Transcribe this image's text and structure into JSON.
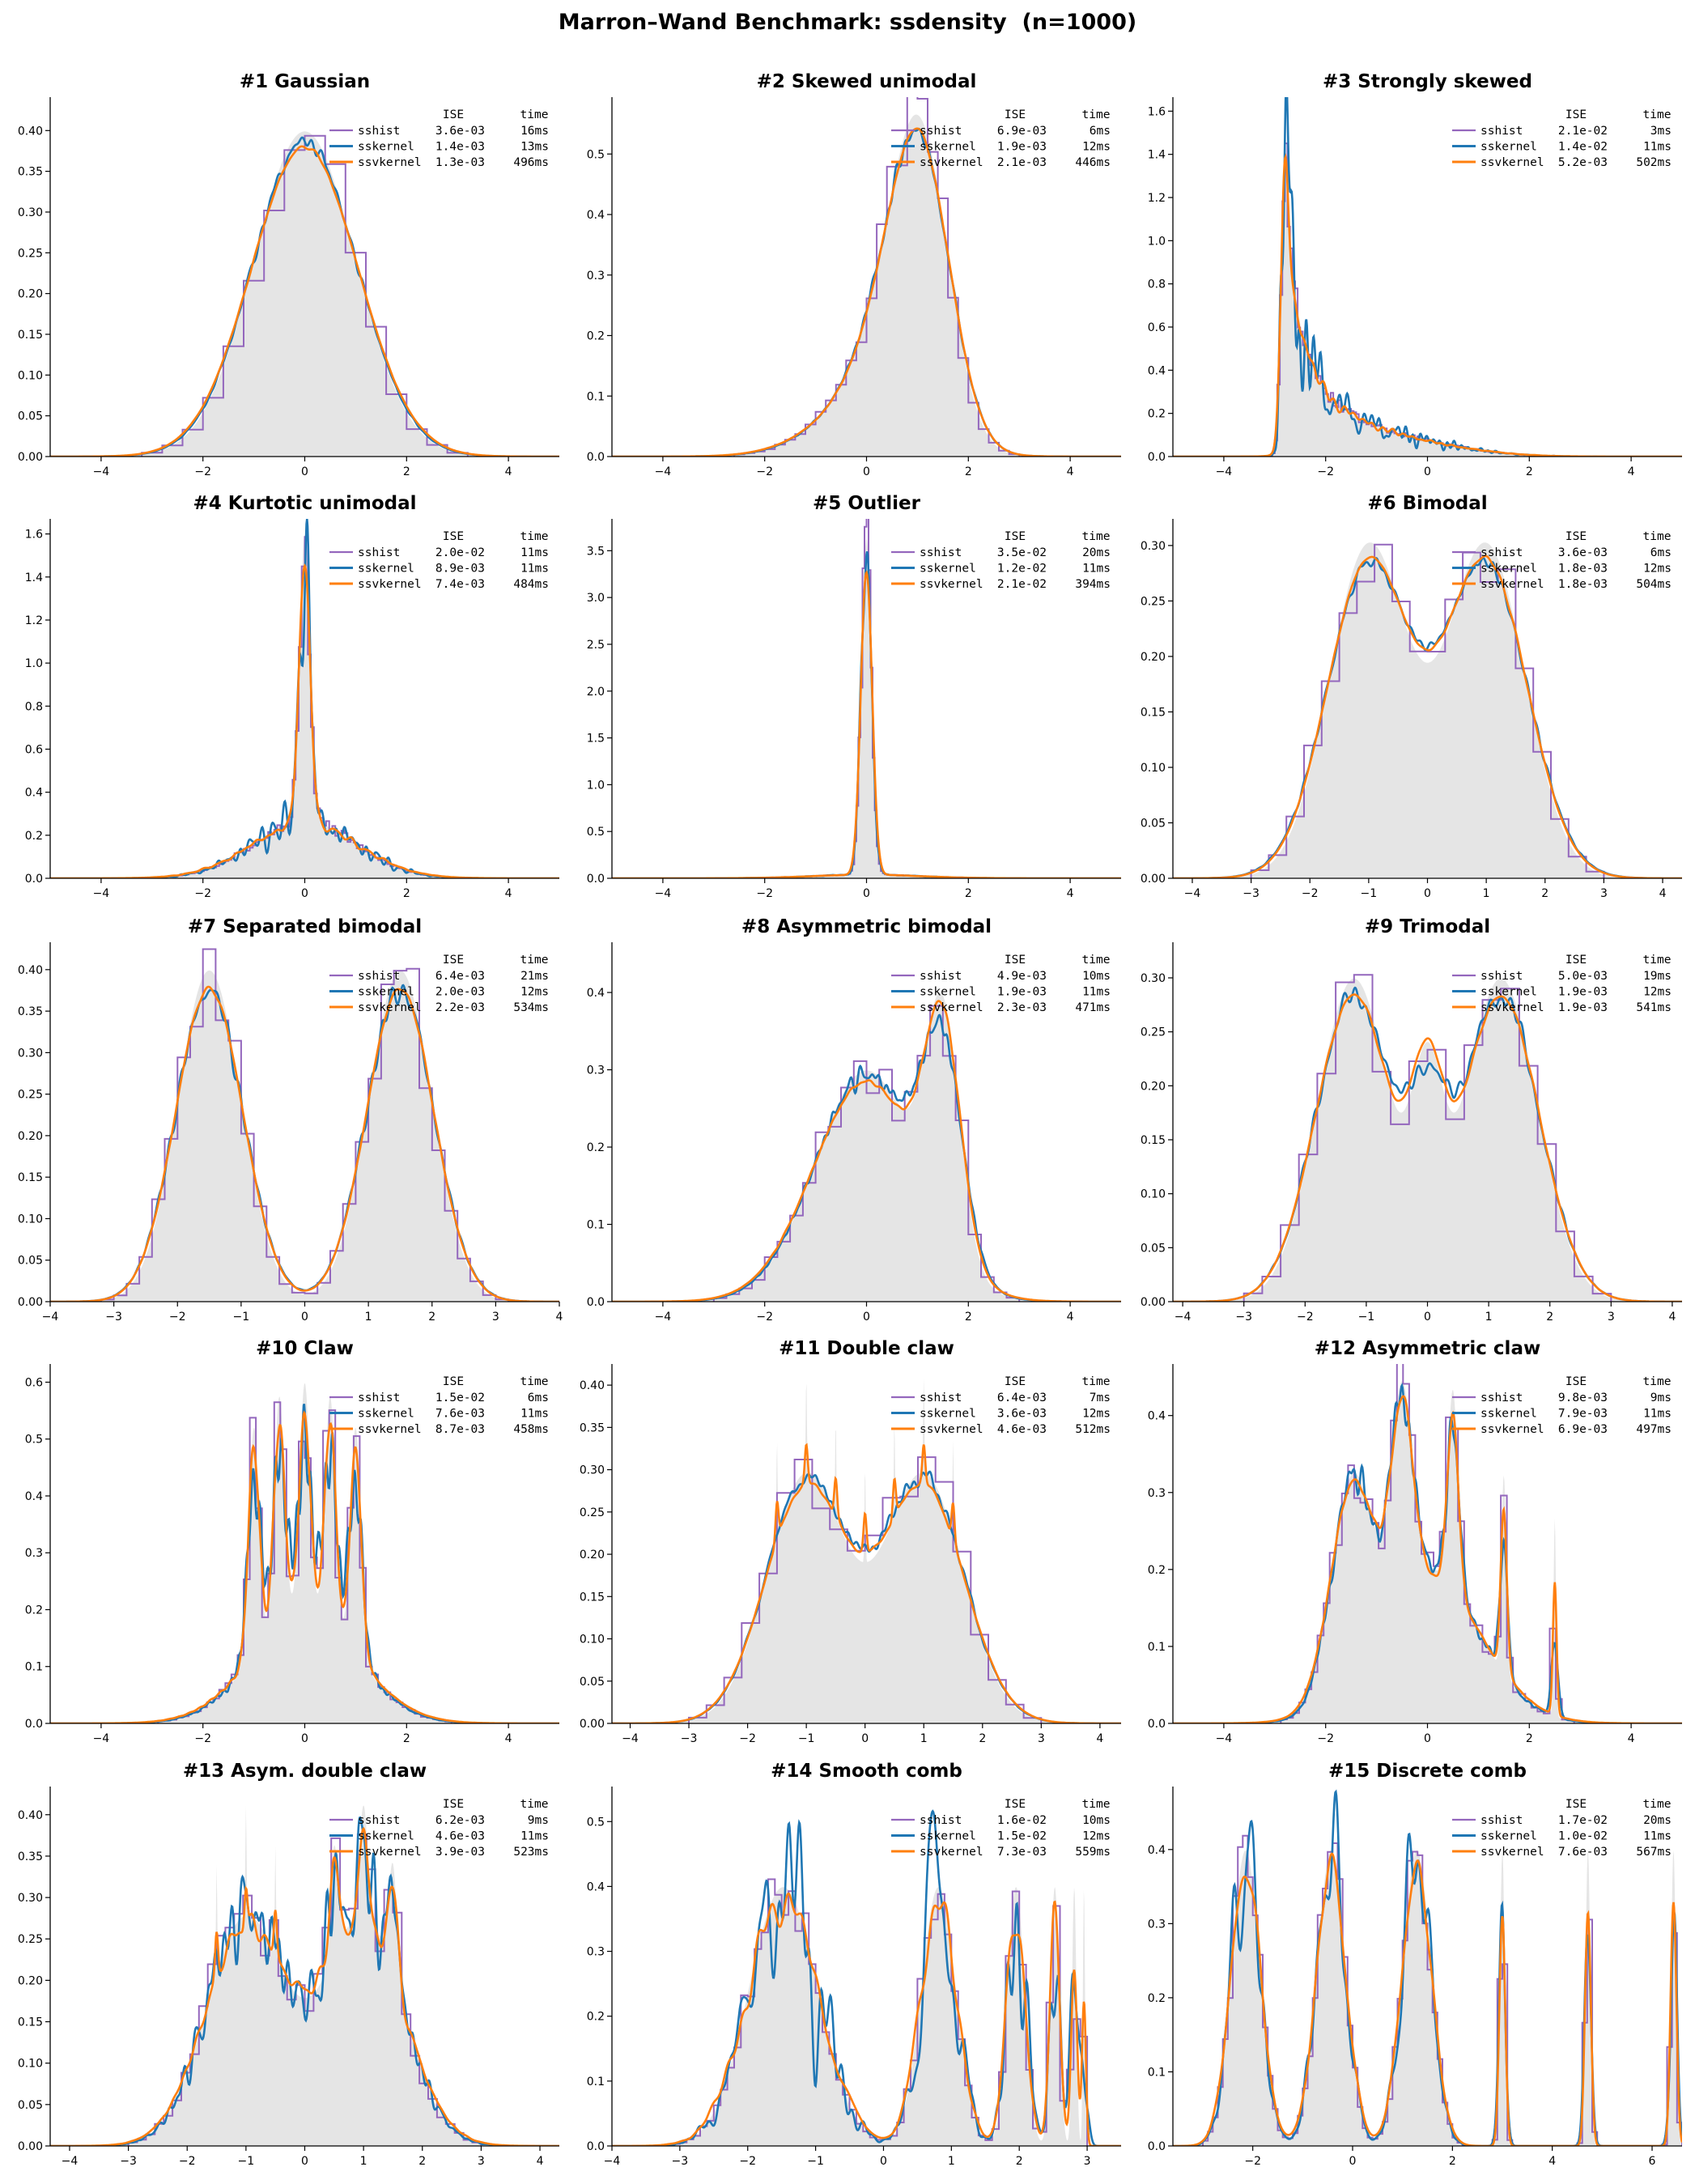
{
  "title": "Marron–Wand Benchmark: ssdensity  (n=1000)",
  "legend_header": {
    "ise": "ISE",
    "time": "time"
  },
  "colors": {
    "truth": "#e5e5e5",
    "sshist": "#9467bd",
    "sskernel": "#1f77b4",
    "ssvkernel": "#ff7f0e",
    "axis": "#000000"
  },
  "chart_data": [
    {
      "type": "line",
      "title": "#1 Gaussian",
      "xlim": [
        -5,
        5
      ],
      "ylim": [
        0,
        0.441
      ],
      "xticks": [
        "−4",
        "−2",
        "0",
        "2",
        "4"
      ],
      "yticks": [
        "0.00",
        "0.05",
        "0.10",
        "0.15",
        "0.20",
        "0.25",
        "0.30",
        "0.35",
        "0.40"
      ],
      "true_density_components": [
        [
          1,
          0,
          1
        ]
      ],
      "results": [
        {
          "method": "sshist",
          "ise": "3.6e-03",
          "time": "16ms"
        },
        {
          "method": "sskernel",
          "ise": "1.4e-03",
          "time": "13ms"
        },
        {
          "method": "ssvkernel",
          "ise": "1.3e-03",
          "time": "496ms"
        }
      ]
    },
    {
      "type": "line",
      "title": "#2 Skewed unimodal",
      "xlim": [
        -5,
        5
      ],
      "ylim": [
        0,
        0.594
      ],
      "xticks": [
        "−4",
        "−2",
        "0",
        "2",
        "4"
      ],
      "yticks": [
        "0.0",
        "0.1",
        "0.2",
        "0.3",
        "0.4",
        "0.5"
      ],
      "true_density_components": [
        [
          0.2,
          0,
          1
        ],
        [
          0.2,
          0.5,
          0.6667
        ],
        [
          0.6,
          1.0833,
          0.5556
        ]
      ],
      "results": [
        {
          "method": "sshist",
          "ise": "6.9e-03",
          "time": "6ms"
        },
        {
          "method": "sskernel",
          "ise": "1.9e-03",
          "time": "12ms"
        },
        {
          "method": "ssvkernel",
          "ise": "2.1e-03",
          "time": "446ms"
        }
      ]
    },
    {
      "type": "line",
      "title": "#3 Strongly skewed",
      "xlim": [
        -5,
        5
      ],
      "ylim": [
        0,
        1.665
      ],
      "xticks": [
        "−4",
        "−2",
        "0",
        "2",
        "4"
      ],
      "yticks": [
        "0.0",
        "0.2",
        "0.4",
        "0.6",
        "0.8",
        "1.0",
        "1.2",
        "1.4",
        "1.6"
      ],
      "true_density_components": [
        [
          0.125,
          0,
          1
        ],
        [
          0.125,
          -1,
          0.6667
        ],
        [
          0.125,
          -1.6667,
          0.4444
        ],
        [
          0.125,
          -2.1111,
          0.2963
        ],
        [
          0.125,
          -2.4074,
          0.1975
        ],
        [
          0.125,
          -2.6049,
          0.1317
        ],
        [
          0.125,
          -2.7366,
          0.0878
        ],
        [
          0.125,
          -2.8244,
          0.0585
        ]
      ],
      "results": [
        {
          "method": "sshist",
          "ise": "2.1e-02",
          "time": "3ms"
        },
        {
          "method": "sskernel",
          "ise": "1.4e-02",
          "time": "11ms"
        },
        {
          "method": "ssvkernel",
          "ise": "5.2e-03",
          "time": "502ms"
        }
      ]
    },
    {
      "type": "line",
      "title": "#4 Kurtotic unimodal",
      "xlim": [
        -5,
        5
      ],
      "ylim": [
        0,
        1.67
      ],
      "xticks": [
        "−4",
        "−2",
        "0",
        "2",
        "4"
      ],
      "yticks": [
        "0.0",
        "0.2",
        "0.4",
        "0.6",
        "0.8",
        "1.0",
        "1.2",
        "1.4",
        "1.6"
      ],
      "true_density_components": [
        [
          0.6667,
          0,
          1
        ],
        [
          0.3333,
          0,
          0.1
        ]
      ],
      "results": [
        {
          "method": "sshist",
          "ise": "2.0e-02",
          "time": "11ms"
        },
        {
          "method": "sskernel",
          "ise": "8.9e-03",
          "time": "11ms"
        },
        {
          "method": "ssvkernel",
          "ise": "7.4e-03",
          "time": "484ms"
        }
      ]
    },
    {
      "type": "line",
      "title": "#5 Outlier",
      "xlim": [
        -5,
        5
      ],
      "ylim": [
        0,
        3.84
      ],
      "xticks": [
        "−4",
        "−2",
        "0",
        "2",
        "4"
      ],
      "yticks": [
        "0.0",
        "0.5",
        "1.0",
        "1.5",
        "2.0",
        "2.5",
        "3.0",
        "3.5"
      ],
      "true_density_components": [
        [
          0.1,
          0,
          1
        ],
        [
          0.9,
          0,
          0.1
        ]
      ],
      "results": [
        {
          "method": "sshist",
          "ise": "3.5e-02",
          "time": "20ms"
        },
        {
          "method": "sskernel",
          "ise": "1.2e-02",
          "time": "11ms"
        },
        {
          "method": "ssvkernel",
          "ise": "2.1e-02",
          "time": "394ms"
        }
      ]
    },
    {
      "type": "line",
      "title": "#6 Bimodal",
      "xlim": [
        -4.33,
        4.33
      ],
      "ylim": [
        0,
        0.324
      ],
      "xticks": [
        "−4",
        "−3",
        "−2",
        "−1",
        "0",
        "1",
        "2",
        "3",
        "4"
      ],
      "yticks": [
        "0.00",
        "0.05",
        "0.10",
        "0.15",
        "0.20",
        "0.25",
        "0.30"
      ],
      "true_density_components": [
        [
          0.5,
          -1,
          0.6667
        ],
        [
          0.5,
          1,
          0.6667
        ]
      ],
      "results": [
        {
          "method": "sshist",
          "ise": "3.6e-03",
          "time": "6ms"
        },
        {
          "method": "sskernel",
          "ise": "1.8e-03",
          "time": "12ms"
        },
        {
          "method": "ssvkernel",
          "ise": "1.8e-03",
          "time": "504ms"
        }
      ]
    },
    {
      "type": "line",
      "title": "#7 Separated bimodal",
      "xlim": [
        -4,
        4
      ],
      "ylim": [
        0,
        0.433
      ],
      "xticks": [
        "−4",
        "−3",
        "−2",
        "−1",
        "0",
        "1",
        "2",
        "3",
        "4"
      ],
      "yticks": [
        "0.00",
        "0.05",
        "0.10",
        "0.15",
        "0.20",
        "0.25",
        "0.30",
        "0.35",
        "0.40"
      ],
      "true_density_components": [
        [
          0.5,
          -1.5,
          0.5
        ],
        [
          0.5,
          1.5,
          0.5
        ]
      ],
      "results": [
        {
          "method": "sshist",
          "ise": "6.4e-03",
          "time": "21ms"
        },
        {
          "method": "sskernel",
          "ise": "2.0e-03",
          "time": "12ms"
        },
        {
          "method": "ssvkernel",
          "ise": "2.2e-03",
          "time": "534ms"
        }
      ]
    },
    {
      "type": "line",
      "title": "#8 Asymmetric bimodal",
      "xlim": [
        -5,
        5
      ],
      "ylim": [
        0,
        0.465
      ],
      "xticks": [
        "−4",
        "−2",
        "0",
        "2",
        "4"
      ],
      "yticks": [
        "0.0",
        "0.1",
        "0.2",
        "0.3",
        "0.4"
      ],
      "true_density_components": [
        [
          0.75,
          0,
          1
        ],
        [
          0.25,
          1.5,
          0.3333
        ]
      ],
      "results": [
        {
          "method": "sshist",
          "ise": "4.9e-03",
          "time": "10ms"
        },
        {
          "method": "sskernel",
          "ise": "1.9e-03",
          "time": "11ms"
        },
        {
          "method": "ssvkernel",
          "ise": "2.3e-03",
          "time": "471ms"
        }
      ]
    },
    {
      "type": "line",
      "title": "#9 Trimodal",
      "xlim": [
        -4.16,
        4.16
      ],
      "ylim": [
        0,
        0.333
      ],
      "xticks": [
        "−4",
        "−3",
        "−2",
        "−1",
        "0",
        "1",
        "2",
        "3",
        "4"
      ],
      "yticks": [
        "0.00",
        "0.05",
        "0.10",
        "0.15",
        "0.20",
        "0.25",
        "0.30"
      ],
      "true_density_components": [
        [
          0.45,
          -1.2,
          0.6
        ],
        [
          0.45,
          1.2,
          0.6
        ],
        [
          0.1,
          0,
          0.25
        ]
      ],
      "results": [
        {
          "method": "sshist",
          "ise": "5.0e-03",
          "time": "19ms"
        },
        {
          "method": "sskernel",
          "ise": "1.9e-03",
          "time": "12ms"
        },
        {
          "method": "ssvkernel",
          "ise": "1.9e-03",
          "time": "541ms"
        }
      ]
    },
    {
      "type": "line",
      "title": "#10 Claw",
      "xlim": [
        -5,
        5
      ],
      "ylim": [
        0,
        0.632
      ],
      "xticks": [
        "−4",
        "−2",
        "0",
        "2",
        "4"
      ],
      "yticks": [
        "0.0",
        "0.1",
        "0.2",
        "0.3",
        "0.4",
        "0.5",
        "0.6"
      ],
      "true_density_components": [
        [
          0.5,
          0,
          1
        ],
        [
          0.1,
          -1,
          0.1
        ],
        [
          0.1,
          -0.5,
          0.1
        ],
        [
          0.1,
          0,
          0.1
        ],
        [
          0.1,
          0.5,
          0.1
        ],
        [
          0.1,
          1,
          0.1
        ]
      ],
      "results": [
        {
          "method": "sshist",
          "ise": "1.5e-02",
          "time": "6ms"
        },
        {
          "method": "sskernel",
          "ise": "7.6e-03",
          "time": "11ms"
        },
        {
          "method": "ssvkernel",
          "ise": "8.7e-03",
          "time": "458ms"
        }
      ]
    },
    {
      "type": "line",
      "title": "#11 Double claw",
      "xlim": [
        -4.31,
        4.36
      ],
      "ylim": [
        0,
        0.425
      ],
      "xticks": [
        "−4",
        "−3",
        "−2",
        "−1",
        "0",
        "1",
        "2",
        "3",
        "4"
      ],
      "yticks": [
        "0.00",
        "0.05",
        "0.10",
        "0.15",
        "0.20",
        "0.25",
        "0.30",
        "0.35",
        "0.40"
      ],
      "true_density_components": [
        [
          0.49,
          -1,
          0.6667
        ],
        [
          0.49,
          1,
          0.6667
        ],
        [
          0.002857,
          -1.5,
          0.01
        ],
        [
          0.002857,
          -1,
          0.01
        ],
        [
          0.002857,
          -0.5,
          0.01
        ],
        [
          0.002857,
          0,
          0.01
        ],
        [
          0.002857,
          0.5,
          0.01
        ],
        [
          0.002857,
          1,
          0.01
        ],
        [
          0.002857,
          1.5,
          0.01
        ]
      ],
      "results": [
        {
          "method": "sshist",
          "ise": "6.4e-03",
          "time": "7ms"
        },
        {
          "method": "sskernel",
          "ise": "3.6e-03",
          "time": "12ms"
        },
        {
          "method": "ssvkernel",
          "ise": "4.6e-03",
          "time": "512ms"
        }
      ]
    },
    {
      "type": "line",
      "title": "#12 Asymmetric claw",
      "xlim": [
        -5,
        5
      ],
      "ylim": [
        0,
        0.467
      ],
      "xticks": [
        "−4",
        "−2",
        "0",
        "2",
        "4"
      ],
      "yticks": [
        "0.0",
        "0.1",
        "0.2",
        "0.3",
        "0.4"
      ],
      "true_density_components": [
        [
          0.5,
          0,
          1
        ],
        [
          0.2581,
          -1.5,
          0.4
        ],
        [
          0.129,
          -0.5,
          0.2
        ],
        [
          0.0645,
          0.5,
          0.1
        ],
        [
          0.03226,
          1.5,
          0.05
        ],
        [
          0.01613,
          2.5,
          0.025
        ]
      ],
      "results": [
        {
          "method": "sshist",
          "ise": "9.8e-03",
          "time": "9ms"
        },
        {
          "method": "sskernel",
          "ise": "7.9e-03",
          "time": "11ms"
        },
        {
          "method": "ssvkernel",
          "ise": "6.9e-03",
          "time": "497ms"
        }
      ]
    },
    {
      "type": "line",
      "title": "#13 Asym. double claw",
      "xlim": [
        -4.33,
        4.33
      ],
      "ylim": [
        0,
        0.434
      ],
      "xticks": [
        "−4",
        "−3",
        "−2",
        "−1",
        "0",
        "1",
        "2",
        "3",
        "4"
      ],
      "yticks": [
        "0.00",
        "0.05",
        "0.10",
        "0.15",
        "0.20",
        "0.25",
        "0.30",
        "0.35",
        "0.40"
      ],
      "true_density_components": [
        [
          0.46,
          -1,
          0.6667
        ],
        [
          0.46,
          1,
          0.6667
        ],
        [
          0.003333,
          -0.5,
          0.01
        ],
        [
          0.003333,
          -1,
          0.01
        ],
        [
          0.003333,
          -1.5,
          0.01
        ],
        [
          0.023333,
          0.5,
          0.07
        ],
        [
          0.023333,
          1,
          0.07
        ],
        [
          0.023333,
          1.5,
          0.07
        ]
      ],
      "results": [
        {
          "method": "sshist",
          "ise": "6.2e-03",
          "time": "9ms"
        },
        {
          "method": "sskernel",
          "ise": "4.6e-03",
          "time": "11ms"
        },
        {
          "method": "ssvkernel",
          "ise": "3.9e-03",
          "time": "523ms"
        }
      ]
    },
    {
      "type": "line",
      "title": "#14 Smooth comb",
      "xlim": [
        -4,
        3.5
      ],
      "ylim": [
        0,
        0.554
      ],
      "xticks": [
        "−4",
        "−3",
        "−2",
        "−1",
        "0",
        "1",
        "2",
        "3"
      ],
      "yticks": [
        "0.0",
        "0.1",
        "0.2",
        "0.3",
        "0.4",
        "0.5"
      ],
      "true_density_components": [
        [
          0.5079,
          -1.4762,
          0.5079
        ],
        [
          0.254,
          0.8095,
          0.254
        ],
        [
          0.127,
          1.9524,
          0.127
        ],
        [
          0.0635,
          2.5238,
          0.0635
        ],
        [
          0.03175,
          2.8095,
          0.03175
        ],
        [
          0.01587,
          2.9524,
          0.01587
        ]
      ],
      "results": [
        {
          "method": "sshist",
          "ise": "1.6e-02",
          "time": "10ms"
        },
        {
          "method": "sskernel",
          "ise": "1.5e-02",
          "time": "12ms"
        },
        {
          "method": "ssvkernel",
          "ise": "7.3e-03",
          "time": "559ms"
        }
      ]
    },
    {
      "type": "line",
      "title": "#15 Discrete comb",
      "xlim": [
        -3.6,
        6.6
      ],
      "ylim": [
        0,
        0.485
      ],
      "xticks": [
        "−2",
        "0",
        "2",
        "4",
        "6"
      ],
      "yticks": [
        "0.0",
        "0.1",
        "0.2",
        "0.3",
        "0.4"
      ],
      "true_density_components": [
        [
          0.2857,
          -2.1429,
          0.2857
        ],
        [
          0.2857,
          -0.4286,
          0.2857
        ],
        [
          0.2857,
          1.2857,
          0.2857
        ],
        [
          0.04762,
          3.0,
          0.04762
        ],
        [
          0.04762,
          4.7143,
          0.04762
        ],
        [
          0.04762,
          6.4286,
          0.04762
        ]
      ],
      "results": [
        {
          "method": "sshist",
          "ise": "1.7e-02",
          "time": "20ms"
        },
        {
          "method": "sskernel",
          "ise": "1.0e-02",
          "time": "11ms"
        },
        {
          "method": "ssvkernel",
          "ise": "7.6e-03",
          "time": "567ms"
        }
      ]
    }
  ]
}
